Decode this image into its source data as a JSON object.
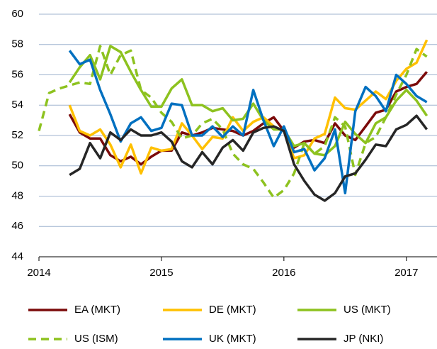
{
  "chart_data": {
    "type": "line",
    "x": [
      2014,
      2014.083,
      2014.167,
      2014.25,
      2014.333,
      2014.417,
      2014.5,
      2014.583,
      2014.667,
      2014.75,
      2014.833,
      2014.917,
      2015,
      2015.083,
      2015.167,
      2015.25,
      2015.333,
      2015.417,
      2015.5,
      2015.583,
      2015.667,
      2015.75,
      2015.833,
      2015.917,
      2016,
      2016.083,
      2016.167,
      2016.25,
      2016.333,
      2016.417,
      2016.5,
      2016.583,
      2016.667,
      2016.75,
      2016.833,
      2016.917,
      2017,
      2017.083,
      2017.167
    ],
    "series": [
      {
        "name": "EA (MKT)",
        "color": "#7b0a0a",
        "dashed": false,
        "values": [
          null,
          null,
          null,
          53.4,
          52.2,
          51.8,
          51.8,
          50.7,
          50.3,
          50.6,
          50.1,
          50.6,
          51.0,
          51.0,
          52.2,
          52.0,
          52.2,
          52.5,
          52.4,
          52.3,
          52.0,
          52.3,
          52.8,
          53.2,
          52.3,
          51.2,
          51.6,
          51.7,
          51.5,
          52.8,
          52.0,
          51.7,
          52.6,
          53.5,
          53.7,
          54.9,
          55.2,
          55.4,
          56.2
        ]
      },
      {
        "name": "DE (MKT)",
        "color": "#ffc000",
        "dashed": false,
        "values": [
          null,
          null,
          null,
          54.0,
          52.3,
          52.0,
          52.4,
          51.4,
          49.9,
          51.4,
          49.5,
          51.2,
          51.0,
          51.1,
          52.8,
          52.0,
          51.1,
          51.9,
          51.8,
          53.2,
          52.3,
          52.9,
          53.2,
          52.6,
          52.3,
          50.5,
          50.7,
          51.8,
          52.1,
          54.5,
          53.8,
          53.7,
          54.3,
          54.9,
          54.4,
          55.6,
          56.4,
          56.8,
          58.3
        ]
      },
      {
        "name": "US (MKT)",
        "color": "#8dc21f",
        "dashed": false,
        "values": [
          null,
          null,
          null,
          55.5,
          56.5,
          57.3,
          55.7,
          57.9,
          57.5,
          56.2,
          55.0,
          53.9,
          53.9,
          55.1,
          55.7,
          54.0,
          54.0,
          53.6,
          53.8,
          53.0,
          53.1,
          54.1,
          53.0,
          52.4,
          52.4,
          51.3,
          51.5,
          50.8,
          50.7,
          51.3,
          52.9,
          52.1,
          51.5,
          52.8,
          53.2,
          54.3,
          55.0,
          54.3,
          53.3
        ]
      },
      {
        "name": "US (ISM)",
        "color": "#8dc21f",
        "dashed": true,
        "values": [
          52.3,
          54.8,
          55.1,
          55.3,
          55.5,
          55.4,
          57.9,
          56.0,
          57.3,
          57.6,
          55.0,
          54.5,
          53.5,
          52.9,
          51.8,
          52.0,
          52.8,
          53.1,
          52.4,
          50.8,
          50.1,
          49.8,
          48.9,
          47.9,
          48.4,
          49.5,
          51.5,
          50.8,
          51.3,
          53.2,
          52.6,
          49.4,
          51.5,
          51.9,
          53.2,
          54.7,
          56.0,
          57.7,
          57.2
        ]
      },
      {
        "name": "UK (MKT)",
        "color": "#0070c0",
        "dashed": false,
        "values": [
          null,
          null,
          null,
          57.6,
          56.7,
          57.0,
          55.0,
          53.4,
          51.6,
          52.8,
          53.2,
          52.3,
          52.5,
          54.1,
          54.0,
          52.0,
          52.0,
          52.6,
          51.9,
          52.6,
          52.0,
          55.0,
          53.0,
          51.3,
          52.6,
          50.9,
          51.1,
          49.7,
          50.5,
          52.4,
          48.2,
          53.6,
          55.2,
          54.6,
          53.6,
          56.0,
          55.4,
          54.6,
          54.2
        ]
      },
      {
        "name": "JP (NKI)",
        "color": "#262626",
        "dashed": false,
        "values": [
          null,
          null,
          null,
          49.4,
          49.8,
          51.5,
          50.5,
          52.2,
          51.7,
          52.4,
          52.0,
          52.0,
          52.2,
          51.6,
          50.3,
          49.9,
          50.9,
          50.1,
          51.2,
          51.7,
          51.0,
          52.2,
          52.5,
          52.6,
          52.3,
          50.1,
          49.0,
          48.1,
          47.7,
          48.2,
          49.3,
          49.5,
          50.4,
          51.4,
          51.3,
          52.4,
          52.7,
          53.3,
          52.4
        ]
      }
    ],
    "xlim": [
      2014,
      2017.25
    ],
    "xticks": [
      2014,
      2015,
      2016,
      2017
    ],
    "ylim": [
      44,
      60
    ],
    "yticks": [
      44,
      46,
      48,
      50,
      52,
      54,
      56,
      58,
      60
    ],
    "grid": true
  }
}
